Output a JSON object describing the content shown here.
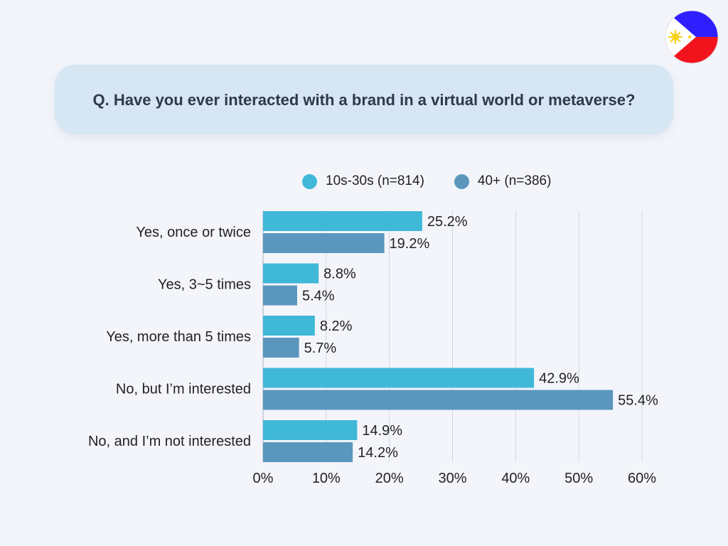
{
  "title": "Q. Have you ever interacted with a brand in a virtual world or metaverse?",
  "flag": {
    "name": "philippines-flag-icon",
    "colors": {
      "blue": "#2f1fff",
      "red": "#f2141c",
      "white": "#ffffff",
      "yellow": "#f7d21b"
    }
  },
  "chart_data": {
    "type": "bar",
    "orientation": "horizontal",
    "categories": [
      "Yes, once or twice",
      "Yes, 3~5 times",
      "Yes, more than 5 times",
      "No, but I’m interested",
      "No, and I’m not interested"
    ],
    "series": [
      {
        "name": "10s-30s (n=814)",
        "color": "#40b8d8",
        "values": [
          25.2,
          8.8,
          8.2,
          42.9,
          14.9
        ],
        "labels": [
          "25.2%",
          "8.8%",
          "8.2%",
          "42.9%",
          "14.9%"
        ]
      },
      {
        "name": "40+ (n=386)",
        "color": "#5b97bd",
        "values": [
          19.2,
          5.4,
          5.7,
          55.4,
          14.2
        ],
        "labels": [
          "19.2%",
          "5.4%",
          "5.7%",
          "55.4%",
          "14.2%"
        ]
      }
    ],
    "xlim": [
      0,
      60
    ],
    "ticks": [
      "0%",
      "10%",
      "20%",
      "30%",
      "40%",
      "50%",
      "60%"
    ],
    "grid": true,
    "legend_position": "top"
  }
}
